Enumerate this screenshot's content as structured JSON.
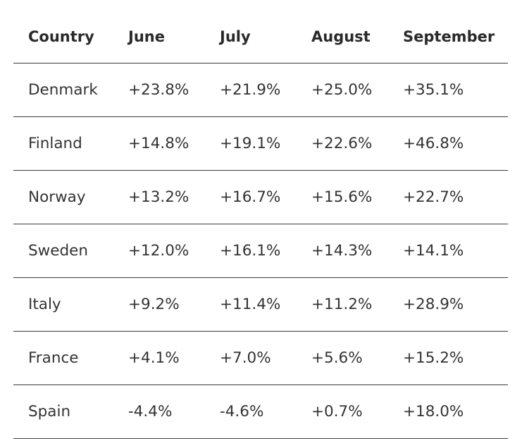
{
  "table": {
    "headers": [
      "Country",
      "June",
      "July",
      "August",
      "September"
    ],
    "rows": [
      [
        "Denmark",
        "+23.8%",
        "+21.9%",
        "+25.0%",
        "+35.1%"
      ],
      [
        "Finland",
        "+14.8%",
        "+19.1%",
        "+22.6%",
        "+46.8%"
      ],
      [
        "Norway",
        "+13.2%",
        "+16.7%",
        "+15.6%",
        "+22.7%"
      ],
      [
        "Sweden",
        "+12.0%",
        "+16.1%",
        "+14.3%",
        "+14.1%"
      ],
      [
        "Italy",
        "+9.2%",
        "+11.4%",
        "+11.2%",
        "+28.9%"
      ],
      [
        "France",
        "+4.1%",
        "+7.0%",
        "+5.6%",
        "+15.2%"
      ],
      [
        "Spain",
        "-4.4%",
        "-4.6%",
        "+0.7%",
        "+18.0%"
      ]
    ]
  }
}
